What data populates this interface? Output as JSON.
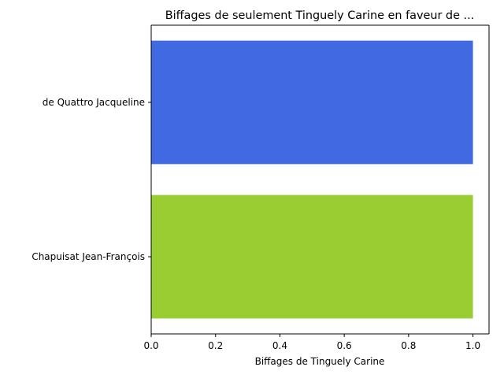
{
  "chart_data": {
    "type": "bar",
    "orientation": "horizontal",
    "title": "Biffages de seulement Tinguely Carine en faveur de ...",
    "xlabel": "Biffages de Tinguely Carine",
    "ylabel": "",
    "categories": [
      "de Quattro Jacqueline",
      "Chapuisat Jean-François"
    ],
    "values": [
      1,
      1
    ],
    "colors": [
      "#4169e1",
      "#9acd32"
    ],
    "xlim": [
      0,
      1.05
    ],
    "xticks": [
      "0.0",
      "0.2",
      "0.4",
      "0.6",
      "0.8",
      "1.0"
    ],
    "grid": false,
    "legend": "none"
  }
}
